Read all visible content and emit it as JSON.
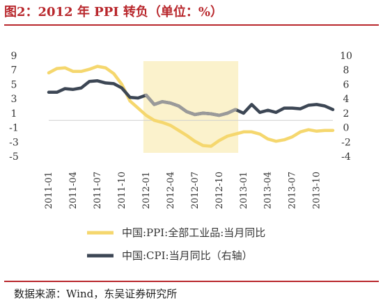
{
  "title": "图2：2012 年 PPI 转负（单位：%）",
  "source": "数据来源：Wind，东吴证券研究所",
  "colors": {
    "title": "#b8262b",
    "ppi": "#f5d76e",
    "cpi": "#3c4654",
    "cpi_highlight": "#9a9a9a",
    "shade": "#fbf2cc"
  },
  "chart_data": {
    "type": "line",
    "x": [
      "2011-01",
      "2011-02",
      "2011-03",
      "2011-04",
      "2011-05",
      "2011-06",
      "2011-07",
      "2011-08",
      "2011-09",
      "2011-10",
      "2011-11",
      "2011-12",
      "2012-01",
      "2012-02",
      "2012-03",
      "2012-04",
      "2012-05",
      "2012-06",
      "2012-07",
      "2012-08",
      "2012-09",
      "2012-10",
      "2012-11",
      "2012-12",
      "2013-01",
      "2013-02",
      "2013-03",
      "2013-04",
      "2013-05",
      "2013-06",
      "2013-07",
      "2013-08",
      "2013-09",
      "2013-10",
      "2013-11",
      "2013-12"
    ],
    "xticks": [
      "2011-01",
      "2011-04",
      "2011-07",
      "2011-10",
      "2012-01",
      "2012-04",
      "2012-07",
      "2012-10",
      "2013-01",
      "2013-04",
      "2013-07",
      "2013-10"
    ],
    "series": [
      {
        "name": "中国:PPI:全部工业品:当月同比",
        "axis": "left",
        "values": [
          6.6,
          7.2,
          7.3,
          6.8,
          6.8,
          7.1,
          7.5,
          7.3,
          6.5,
          5.0,
          2.7,
          1.7,
          0.7,
          0.0,
          -0.3,
          -0.7,
          -1.4,
          -2.1,
          -2.9,
          -3.5,
          -3.6,
          -2.8,
          -2.2,
          -1.9,
          -1.6,
          -1.6,
          -1.9,
          -2.6,
          -2.9,
          -2.7,
          -2.3,
          -1.6,
          -1.3,
          -1.5,
          -1.4,
          -1.4
        ]
      },
      {
        "name": "中国:CPI:当月同比（右轴）",
        "axis": "right",
        "values": [
          4.9,
          4.9,
          5.4,
          5.3,
          5.5,
          6.4,
          6.5,
          6.2,
          6.1,
          5.5,
          4.2,
          4.1,
          4.5,
          3.2,
          3.6,
          3.4,
          3.0,
          2.2,
          1.8,
          2.0,
          1.9,
          1.7,
          2.0,
          2.5,
          2.0,
          3.2,
          2.1,
          2.4,
          2.1,
          2.7,
          2.7,
          2.6,
          3.1,
          3.2,
          3.0,
          2.5
        ]
      }
    ],
    "highlight_range": [
      "2012-01",
      "2012-12"
    ],
    "yleft": {
      "ticks": [
        9,
        7,
        5,
        3,
        1,
        -1,
        -3,
        -5
      ],
      "lim": [
        -5,
        9
      ]
    },
    "yright": {
      "ticks": [
        10,
        8,
        6,
        4,
        2,
        0,
        -2,
        -4
      ],
      "lim": [
        -4,
        10
      ]
    },
    "legend_position": "bottom"
  }
}
